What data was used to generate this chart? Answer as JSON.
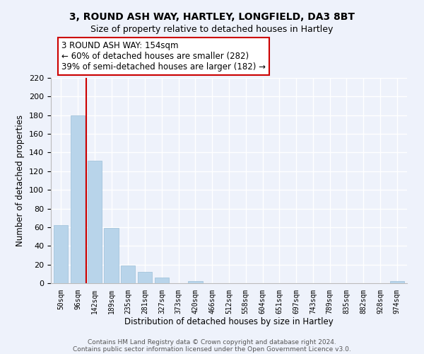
{
  "title": "3, ROUND ASH WAY, HARTLEY, LONGFIELD, DA3 8BT",
  "subtitle": "Size of property relative to detached houses in Hartley",
  "xlabel": "Distribution of detached houses by size in Hartley",
  "ylabel": "Number of detached properties",
  "bar_color": "#b8d4ea",
  "bar_edge_color": "#9bbfd8",
  "categories": [
    "50sqm",
    "96sqm",
    "142sqm",
    "189sqm",
    "235sqm",
    "281sqm",
    "327sqm",
    "373sqm",
    "420sqm",
    "466sqm",
    "512sqm",
    "558sqm",
    "604sqm",
    "651sqm",
    "697sqm",
    "743sqm",
    "789sqm",
    "835sqm",
    "882sqm",
    "928sqm",
    "974sqm"
  ],
  "values": [
    62,
    180,
    131,
    59,
    19,
    12,
    6,
    0,
    2,
    0,
    0,
    0,
    0,
    0,
    0,
    0,
    0,
    0,
    0,
    0,
    2
  ],
  "ylim": [
    0,
    220
  ],
  "yticks": [
    0,
    20,
    40,
    60,
    80,
    100,
    120,
    140,
    160,
    180,
    200,
    220
  ],
  "vline_color": "#cc0000",
  "annotation_title": "3 ROUND ASH WAY: 154sqm",
  "annotation_line1": "← 60% of detached houses are smaller (282)",
  "annotation_line2": "39% of semi-detached houses are larger (182) →",
  "annotation_box_color": "#ffffff",
  "annotation_box_edge": "#cc0000",
  "footer_line1": "Contains HM Land Registry data © Crown copyright and database right 2024.",
  "footer_line2": "Contains public sector information licensed under the Open Government Licence v3.0.",
  "background_color": "#eef2fb",
  "grid_color": "#ffffff"
}
